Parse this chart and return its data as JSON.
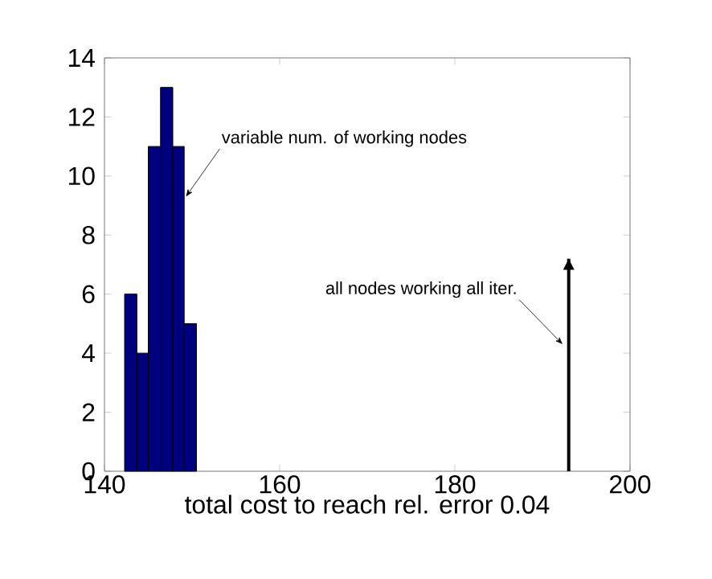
{
  "chart_data": {
    "type": "histogram",
    "xlabel": "total cost to reach rel. error 0.04",
    "bins": [
      142.3,
      143.7,
      145.0,
      146.4,
      147.8,
      149.1,
      150.5
    ],
    "values": [
      6,
      4,
      11,
      13,
      11,
      5
    ],
    "color": "#00007f",
    "series": [
      {
        "type": "line",
        "color": "#000000",
        "x": [
          193,
          193
        ],
        "values": [
          0,
          7.2
        ]
      }
    ],
    "xlim": [
      140,
      200
    ],
    "ylim": [
      0,
      14
    ],
    "xticks": [
      140,
      160,
      180,
      200
    ],
    "yticks": [
      0,
      2,
      4,
      6,
      8,
      10,
      12,
      14
    ],
    "grid": false,
    "annotations": [
      {
        "text": "variable num. of working nodes",
        "x": 149.3,
        "y": 9.3
      },
      {
        "text": "all nodes working all iter.",
        "x": 192.3,
        "y": 4.3
      }
    ]
  }
}
